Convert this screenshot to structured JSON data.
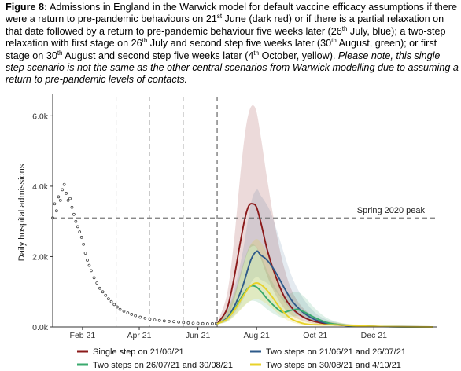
{
  "caption": {
    "label": "Figure 8:",
    "p1": " Admissions in England in the Warwick model for default vaccine efficacy assumptions if there were a return to pre-pandemic behaviours on 21",
    "s1": "st",
    "p2": " June (dark red) or if there is a partial relaxation on that date followed by a return to pre-pandemic behaviour five weeks later (26",
    "s2": "th",
    "p3": " July, blue); a two-step relaxation with first stage on 26",
    "s3": "th",
    "p4": " July and second step five weeks later (30",
    "s4": "th",
    "p5": " August, green); or first stage on 30",
    "s5": "th",
    "p6": " August and second step five weeks later (4",
    "s6": "th",
    "p7": " October, yellow). ",
    "note": "Please note, this single step scenario is not the same as the other central scenarios from Warwick modelling due to assuming a return to pre-pandemic levels of contacts."
  },
  "chart_data": {
    "type": "line",
    "ylabel": "Daily hospital admissions",
    "ylim": [
      0,
      6500
    ],
    "y_ticks": [
      {
        "value": 0,
        "label": "0.0k"
      },
      {
        "value": 2000,
        "label": "2.0k"
      },
      {
        "value": 4000,
        "label": "4.0k"
      },
      {
        "value": 6000,
        "label": "6.0k"
      }
    ],
    "xlim": [
      "2021-01-01",
      "2022-02-05"
    ],
    "x_ticks": [
      {
        "date": "2021-02-01",
        "label": "Feb 21"
      },
      {
        "date": "2021-04-01",
        "label": "Apr 21"
      },
      {
        "date": "2021-06-01",
        "label": "Jun 21"
      },
      {
        "date": "2021-08-01",
        "label": "Aug 21"
      },
      {
        "date": "2021-10-01",
        "label": "Oct 21"
      },
      {
        "date": "2021-12-01",
        "label": "Dec 21"
      }
    ],
    "vlines": [
      {
        "date": "2021-04-12",
        "style": "light"
      },
      {
        "date": "2021-05-17",
        "style": "light"
      },
      {
        "date": "2021-06-21",
        "style": "dark"
      },
      {
        "date": "2021-03-08",
        "style": "light"
      }
    ],
    "hline": {
      "value": 3100,
      "label": "Spring 2020 peak"
    },
    "observed": {
      "name": "Observed admissions",
      "x": [
        "2021-01-01",
        "2021-01-03",
        "2021-01-05",
        "2021-01-07",
        "2021-01-09",
        "2021-01-11",
        "2021-01-13",
        "2021-01-15",
        "2021-01-17",
        "2021-01-19",
        "2021-01-21",
        "2021-01-23",
        "2021-01-25",
        "2021-01-27",
        "2021-01-29",
        "2021-01-31",
        "2021-02-02",
        "2021-02-04",
        "2021-02-06",
        "2021-02-08",
        "2021-02-10",
        "2021-02-13",
        "2021-02-16",
        "2021-02-19",
        "2021-02-22",
        "2021-02-25",
        "2021-02-28",
        "2021-03-03",
        "2021-03-06",
        "2021-03-09",
        "2021-03-12",
        "2021-03-16",
        "2021-03-20",
        "2021-03-24",
        "2021-03-28",
        "2021-04-02",
        "2021-04-07",
        "2021-04-12",
        "2021-04-17",
        "2021-04-22",
        "2021-04-27",
        "2021-05-02",
        "2021-05-07",
        "2021-05-12",
        "2021-05-17",
        "2021-05-22",
        "2021-05-27",
        "2021-06-01",
        "2021-06-06",
        "2021-06-11",
        "2021-06-16",
        "2021-06-20"
      ],
      "y": [
        3100,
        3500,
        3300,
        3700,
        3600,
        3900,
        4050,
        3800,
        3600,
        3650,
        3400,
        3200,
        3000,
        2850,
        2700,
        2550,
        2350,
        2100,
        1900,
        1750,
        1600,
        1400,
        1250,
        1100,
        1000,
        900,
        800,
        720,
        640,
        570,
        500,
        450,
        400,
        360,
        320,
        280,
        250,
        220,
        200,
        185,
        170,
        160,
        150,
        140,
        125,
        115,
        105,
        100,
        95,
        90,
        95,
        100
      ]
    },
    "series": [
      {
        "name": "Single step on 21/06/21",
        "color": "#8b1a1a",
        "x": [
          "2021-06-21",
          "2021-07-01",
          "2021-07-08",
          "2021-07-15",
          "2021-07-20",
          "2021-07-24",
          "2021-07-28",
          "2021-08-01",
          "2021-08-06",
          "2021-08-12",
          "2021-08-20",
          "2021-08-30",
          "2021-09-10",
          "2021-09-25",
          "2021-10-15",
          "2021-11-10",
          "2021-12-15",
          "2022-01-31"
        ],
        "y": [
          90,
          500,
          1300,
          2400,
          3100,
          3450,
          3500,
          3400,
          2900,
          2200,
          1500,
          850,
          450,
          200,
          80,
          30,
          10,
          0
        ],
        "lower": [
          80,
          250,
          700,
          1400,
          1900,
          2200,
          2300,
          2250,
          1900,
          1450,
          950,
          520,
          270,
          120,
          45,
          15,
          5,
          0
        ],
        "upper": [
          110,
          900,
          2300,
          4300,
          5500,
          6100,
          6300,
          6100,
          5300,
          4200,
          2900,
          1650,
          850,
          380,
          150,
          60,
          20,
          0
        ]
      },
      {
        "name": "Two steps on 21/06/21 and 26/07/21",
        "color": "#2e5a8a",
        "x": [
          "2021-06-21",
          "2021-07-01",
          "2021-07-10",
          "2021-07-18",
          "2021-07-26",
          "2021-08-01",
          "2021-08-05",
          "2021-08-10",
          "2021-08-15",
          "2021-08-22",
          "2021-08-30",
          "2021-09-08",
          "2021-09-20",
          "2021-10-05",
          "2021-10-25",
          "2021-11-20",
          "2022-01-31"
        ],
        "y": [
          90,
          250,
          650,
          1200,
          1900,
          2150,
          2050,
          1950,
          1800,
          1500,
          1100,
          700,
          380,
          160,
          60,
          20,
          0
        ],
        "lower": [
          80,
          160,
          420,
          780,
          1250,
          1420,
          1350,
          1280,
          1180,
          980,
          700,
          440,
          230,
          95,
          35,
          10,
          0
        ],
        "upper": [
          110,
          450,
          1200,
          2200,
          3500,
          3900,
          3750,
          3550,
          3300,
          2750,
          2050,
          1350,
          750,
          320,
          120,
          40,
          0
        ]
      },
      {
        "name": "Two steps on 26/07/21 and 30/08/21",
        "color": "#3aaa6e",
        "x": [
          "2021-06-21",
          "2021-07-01",
          "2021-07-10",
          "2021-07-18",
          "2021-07-25",
          "2021-07-31",
          "2021-08-06",
          "2021-08-12",
          "2021-08-20",
          "2021-08-28",
          "2021-09-05",
          "2021-09-12",
          "2021-09-20",
          "2021-10-01",
          "2021-10-15",
          "2021-11-05",
          "2021-12-10",
          "2022-01-31"
        ],
        "y": [
          90,
          230,
          550,
          920,
          1150,
          1150,
          1000,
          800,
          580,
          420,
          470,
          500,
          420,
          260,
          110,
          40,
          10,
          0
        ],
        "lower": [
          80,
          150,
          350,
          580,
          730,
          730,
          640,
          500,
          360,
          260,
          290,
          310,
          260,
          160,
          65,
          25,
          5,
          0
        ],
        "upper": [
          110,
          420,
          1050,
          1800,
          2300,
          2300,
          2000,
          1600,
          1150,
          850,
          950,
          1000,
          850,
          520,
          230,
          80,
          25,
          0
        ]
      },
      {
        "name": "Two steps on 30/08/21 and 4/10/21",
        "color": "#e8d22a",
        "x": [
          "2021-06-21",
          "2021-07-01",
          "2021-07-10",
          "2021-07-18",
          "2021-07-25",
          "2021-08-01",
          "2021-08-08",
          "2021-08-16",
          "2021-08-26",
          "2021-09-06",
          "2021-09-20",
          "2021-10-05",
          "2021-10-20",
          "2021-11-10",
          "2021-12-15",
          "2022-01-31"
        ],
        "y": [
          90,
          220,
          520,
          880,
          1150,
          1250,
          1150,
          900,
          520,
          230,
          90,
          60,
          60,
          35,
          10,
          0
        ],
        "lower": [
          80,
          140,
          330,
          560,
          730,
          790,
          720,
          560,
          320,
          140,
          55,
          35,
          35,
          20,
          5,
          0
        ],
        "upper": [
          110,
          400,
          1000,
          1750,
          2300,
          2500,
          2300,
          1800,
          1050,
          480,
          190,
          130,
          130,
          75,
          25,
          0
        ]
      }
    ]
  }
}
